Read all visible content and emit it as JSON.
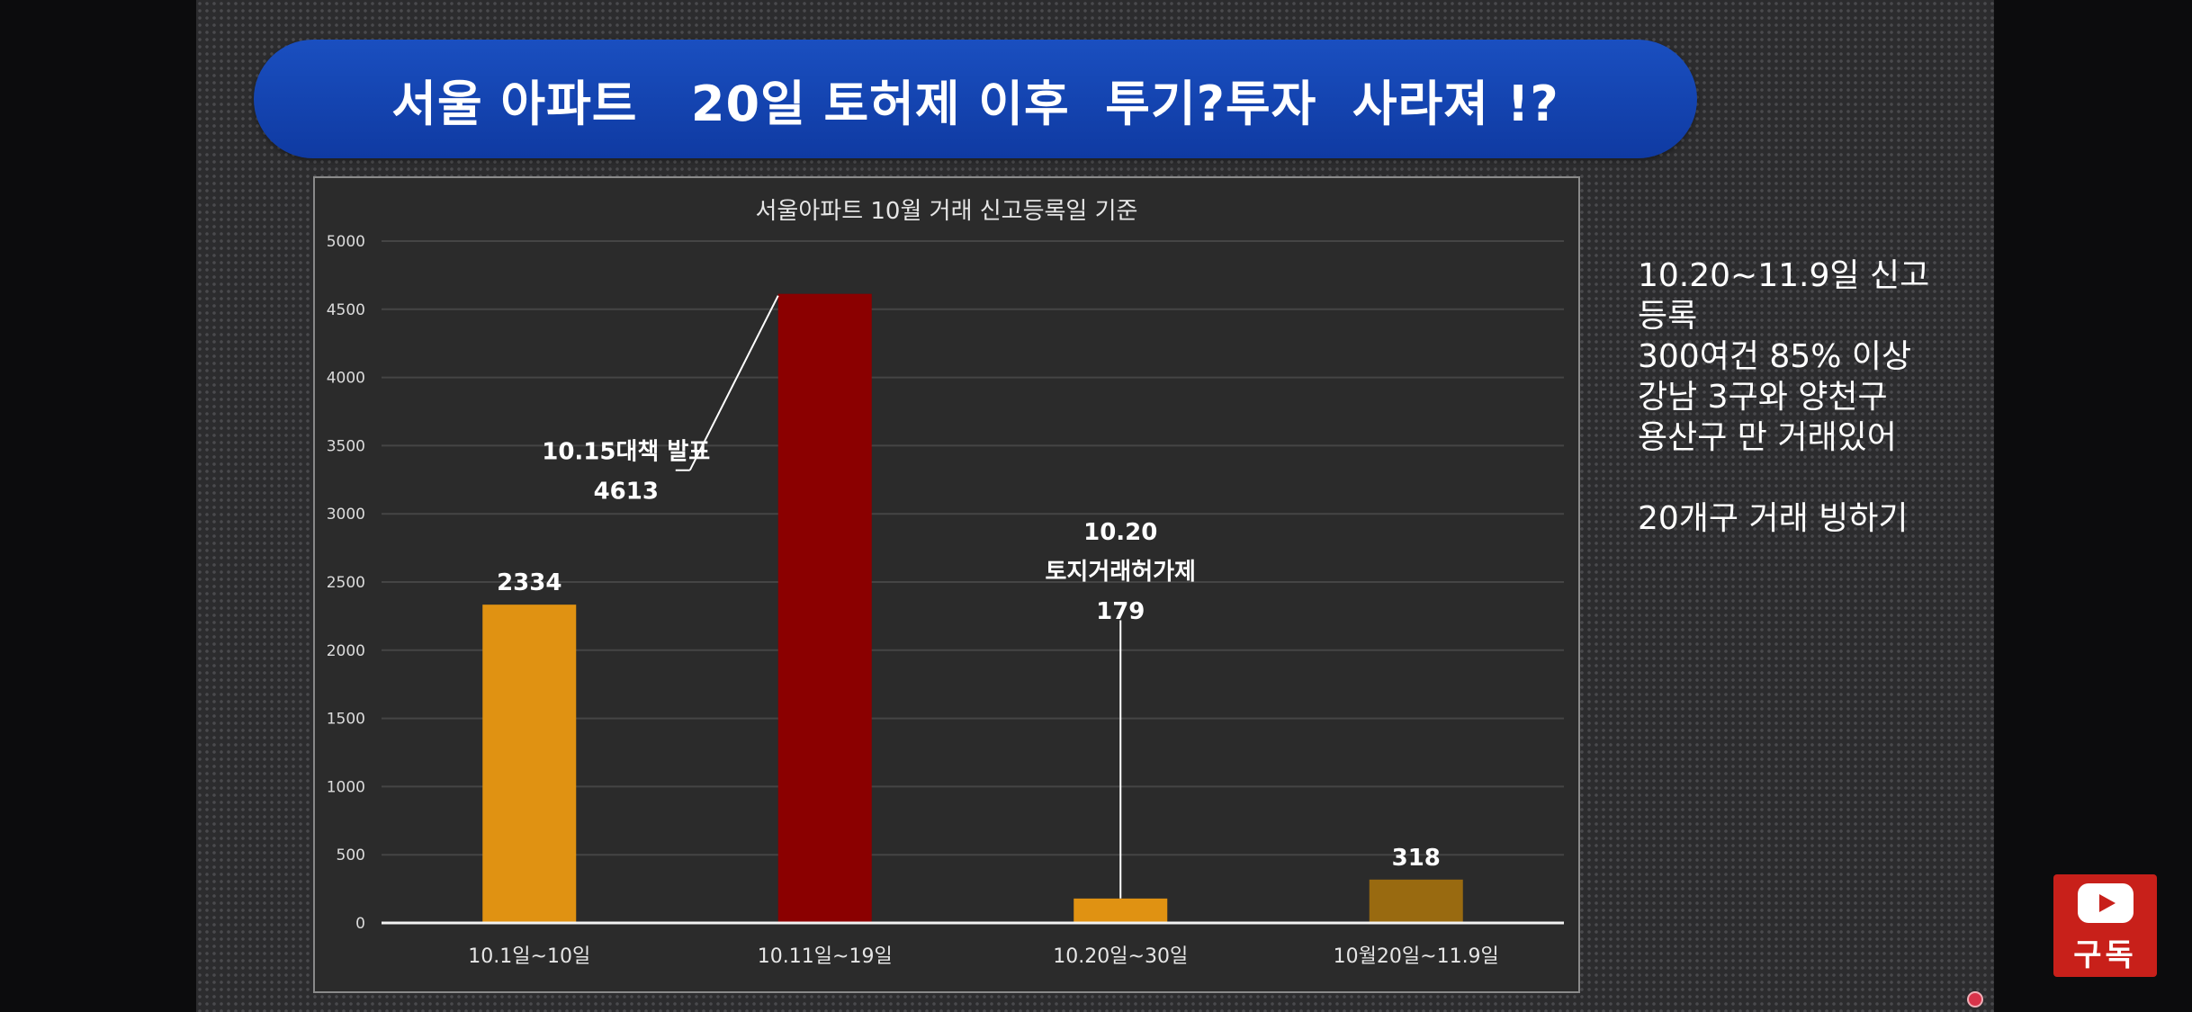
{
  "banner": {
    "title": "서울 아파트   20일 토허제 이후  투기?투자  사라져 !?"
  },
  "side_notes": [
    "10.20~11.9일 신고",
    "등록",
    "300여건 85% 이상",
    "강남 3구와  양천구",
    "용산구 만 거래있어",
    "",
    "20개구 거래 빙하기"
  ],
  "subscribe": {
    "label": "구독",
    "icon": "youtube-play-icon"
  },
  "colors": {
    "banner": "#1246b4",
    "bar_orange": "#e09212",
    "bar_red": "#8b0000",
    "bar_brown": "#996a10"
  },
  "chart_data": {
    "type": "bar",
    "title": "서울아파트 10월 거래 신고등록일  기준",
    "xlabel": "",
    "ylabel": "",
    "ylim": [
      0,
      5000
    ],
    "yticks": [
      0,
      500,
      1000,
      1500,
      2000,
      2500,
      3000,
      3500,
      4000,
      4500,
      5000
    ],
    "grid": true,
    "categories": [
      "10.1일~10일",
      "10.11일~19일",
      "10.20일~30일",
      "10월20일~11.9일"
    ],
    "values": [
      2334,
      4613,
      179,
      318
    ],
    "bar_colors": [
      "#e09212",
      "#8b0000",
      "#e09212",
      "#996a10"
    ],
    "annotations": [
      {
        "lines": [
          "2334"
        ],
        "bar": 0,
        "leader": false
      },
      {
        "lines": [
          "10.15대책 발표",
          "4613"
        ],
        "bar": 1,
        "leader": true
      },
      {
        "lines": [
          "10.20",
          "토지거래허가제",
          "179"
        ],
        "bar": 2,
        "leader": true
      },
      {
        "lines": [
          "318"
        ],
        "bar": 3,
        "leader": false
      }
    ]
  }
}
